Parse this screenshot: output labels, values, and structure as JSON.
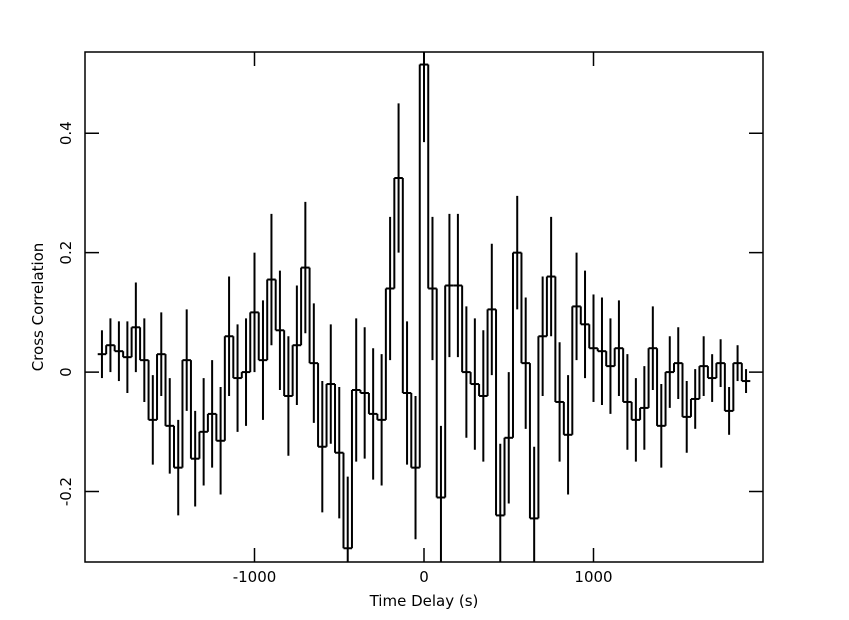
{
  "chart_data": {
    "type": "step",
    "xlabel": "Time Delay (s)",
    "ylabel": "Cross Correlation",
    "xlim": [
      -2000,
      2000
    ],
    "ylim": [
      -0.318,
      0.536
    ],
    "xticks": [
      -1000,
      0,
      1000
    ],
    "yticks": [
      -0.2,
      0,
      0.2,
      0.4
    ],
    "bin_width": 50,
    "color": "#000000",
    "x": [
      -1900,
      -1850,
      -1800,
      -1750,
      -1700,
      -1650,
      -1600,
      -1550,
      -1500,
      -1450,
      -1400,
      -1350,
      -1300,
      -1250,
      -1200,
      -1150,
      -1100,
      -1050,
      -1000,
      -950,
      -900,
      -850,
      -800,
      -750,
      -700,
      -650,
      -600,
      -550,
      -500,
      -450,
      -400,
      -350,
      -300,
      -250,
      -200,
      -150,
      -100,
      -50,
      0,
      50,
      100,
      150,
      200,
      250,
      300,
      350,
      400,
      450,
      500,
      550,
      600,
      650,
      700,
      750,
      800,
      850,
      900,
      950,
      1000,
      1050,
      1100,
      1150,
      1200,
      1250,
      1300,
      1350,
      1400,
      1450,
      1500,
      1550,
      1600,
      1650,
      1700,
      1750,
      1800,
      1850,
      1900
    ],
    "values": [
      0.03,
      0.045,
      0.035,
      0.025,
      0.075,
      0.02,
      -0.08,
      0.03,
      -0.09,
      -0.16,
      0.02,
      -0.145,
      -0.1,
      -0.07,
      -0.115,
      0.06,
      -0.01,
      0.0,
      0.1,
      0.02,
      0.155,
      0.07,
      -0.04,
      0.045,
      0.175,
      0.015,
      -0.125,
      -0.02,
      -0.135,
      -0.295,
      -0.03,
      -0.035,
      -0.07,
      -0.08,
      0.14,
      0.325,
      -0.035,
      -0.16,
      0.515,
      0.14,
      -0.21,
      0.145,
      0.145,
      0.0,
      -0.02,
      -0.04,
      0.105,
      -0.24,
      -0.11,
      0.2,
      0.015,
      -0.245,
      0.06,
      0.16,
      -0.05,
      -0.105,
      0.11,
      0.08,
      0.04,
      0.035,
      0.01,
      0.04,
      -0.05,
      -0.08,
      -0.06,
      0.04,
      -0.09,
      0.0,
      0.015,
      -0.075,
      -0.045,
      0.01,
      -0.01,
      0.015,
      -0.065,
      0.015,
      -0.015
    ],
    "errors": [
      0.04,
      0.045,
      0.05,
      0.06,
      0.075,
      0.07,
      0.075,
      0.07,
      0.08,
      0.08,
      0.085,
      0.08,
      0.09,
      0.09,
      0.09,
      0.1,
      0.09,
      0.09,
      0.1,
      0.1,
      0.11,
      0.1,
      0.1,
      0.1,
      0.11,
      0.1,
      0.11,
      0.1,
      0.11,
      0.12,
      0.12,
      0.11,
      0.11,
      0.11,
      0.12,
      0.125,
      0.12,
      0.12,
      0.13,
      0.12,
      0.12,
      0.12,
      0.12,
      0.11,
      0.11,
      0.11,
      0.11,
      0.12,
      0.11,
      0.095,
      0.11,
      0.12,
      0.1,
      0.1,
      0.1,
      0.1,
      0.09,
      0.09,
      0.09,
      0.09,
      0.08,
      0.08,
      0.08,
      0.07,
      0.07,
      0.07,
      0.07,
      0.06,
      0.06,
      0.06,
      0.05,
      0.05,
      0.04,
      0.04,
      0.04,
      0.03,
      0.02
    ]
  }
}
